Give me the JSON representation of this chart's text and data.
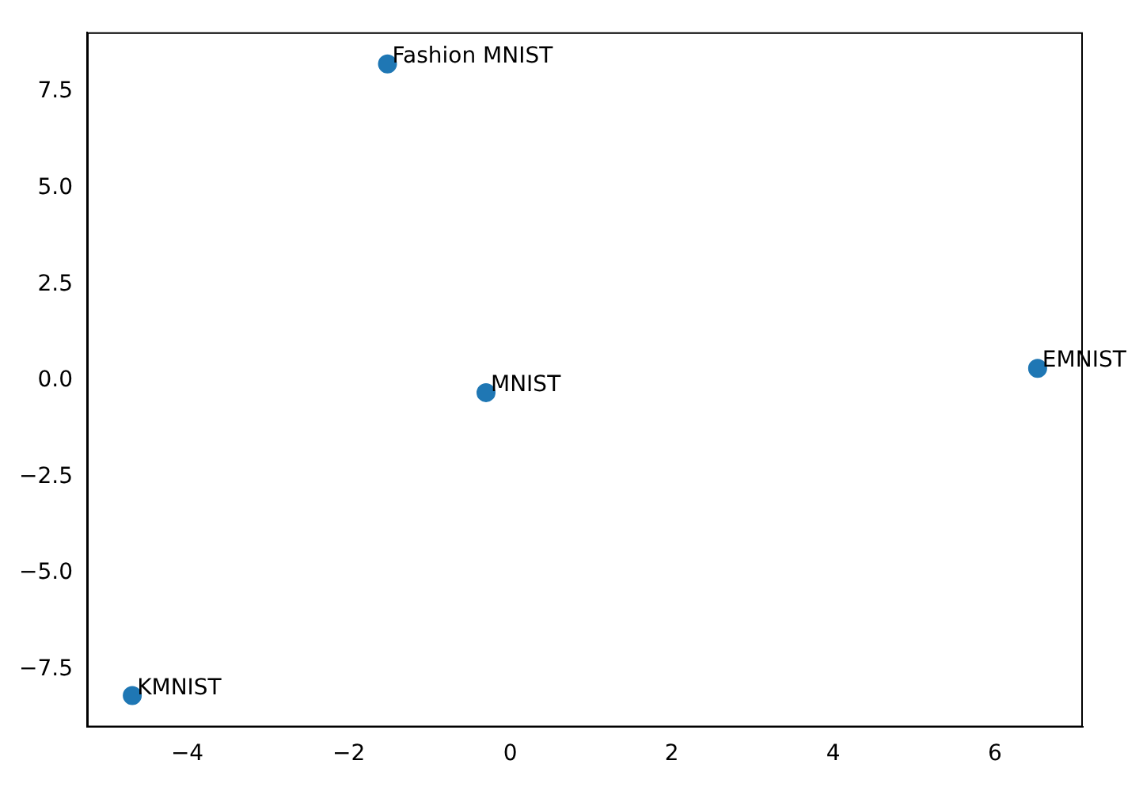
{
  "chart_data": {
    "type": "scatter",
    "x": [
      -0.3,
      -1.52,
      6.53,
      -4.68
    ],
    "values": [
      -0.31,
      8.23,
      0.32,
      -8.18
    ],
    "color": "#1f77b4",
    "marker": "circle",
    "xlim": [
      -5.24,
      7.09
    ],
    "xticks": [
      -4,
      -2,
      0,
      2,
      4,
      6
    ],
    "ylim": [
      -9.0,
      9.05
    ],
    "yticks": [
      -7.5,
      {
        "value": -5,
        "label": "−5.0"
      },
      -2.5,
      {
        "value": 0,
        "label": "0.0"
      },
      2.5,
      {
        "value": 5,
        "label": "5.0"
      },
      7.5
    ],
    "grid": false,
    "legend": false,
    "annotations": [
      {
        "text": "MNIST",
        "x": -0.3,
        "y": -0.31
      },
      {
        "text": "Fashion MNIST",
        "x": -1.52,
        "y": 8.23
      },
      {
        "text": "EMNIST",
        "x": 6.53,
        "y": 0.32
      },
      {
        "text": "KMNIST",
        "x": -4.68,
        "y": -8.18
      }
    ]
  }
}
